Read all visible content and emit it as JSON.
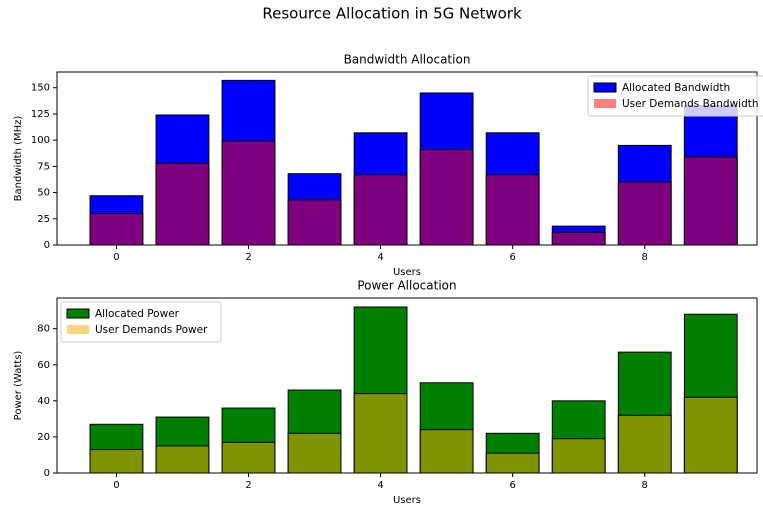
{
  "title": "Resource Allocation in 5G Network",
  "chart_data": [
    {
      "type": "bar",
      "title": "Bandwidth Allocation",
      "xlabel": "Users",
      "ylabel": "Bandwidth (MHz)",
      "categories": [
        0,
        1,
        2,
        3,
        4,
        5,
        6,
        7,
        8,
        9
      ],
      "series": [
        {
          "name": "Allocated Bandwidth",
          "color": "#0000ff",
          "opacity": 1,
          "values": [
            47,
            124,
            157,
            68,
            107,
            145,
            107,
            18,
            95,
            133
          ]
        },
        {
          "name": "User Demands Bandwidth",
          "color": "#ff0000",
          "opacity": 0.5,
          "values": [
            30,
            78,
            99,
            43,
            67,
            91,
            67,
            12,
            60,
            84
          ]
        }
      ],
      "xlim": [
        -0.9,
        9.7
      ],
      "xticks": [
        0,
        2,
        4,
        6,
        8
      ],
      "ylim": [
        0,
        165
      ],
      "yticks": [
        0,
        25,
        50,
        75,
        100,
        125,
        150
      ],
      "legend": "upper right"
    },
    {
      "type": "bar",
      "title": "Power Allocation",
      "xlabel": "Users",
      "ylabel": "Power (Watts)",
      "categories": [
        0,
        1,
        2,
        3,
        4,
        5,
        6,
        7,
        8,
        9
      ],
      "series": [
        {
          "name": "Allocated Power",
          "color": "#008000",
          "opacity": 1,
          "values": [
            27,
            31,
            36,
            46,
            92,
            50,
            22,
            40,
            67,
            88
          ]
        },
        {
          "name": "User Demands Power",
          "color": "#ffa500",
          "opacity": 0.5,
          "values": [
            13,
            15,
            17,
            22,
            44,
            24,
            11,
            19,
            32,
            42
          ]
        }
      ],
      "xlim": [
        -0.9,
        9.7
      ],
      "xticks": [
        0,
        2,
        4,
        6,
        8
      ],
      "ylim": [
        0,
        97
      ],
      "yticks": [
        0,
        20,
        40,
        60,
        80
      ],
      "legend": "upper left"
    }
  ]
}
